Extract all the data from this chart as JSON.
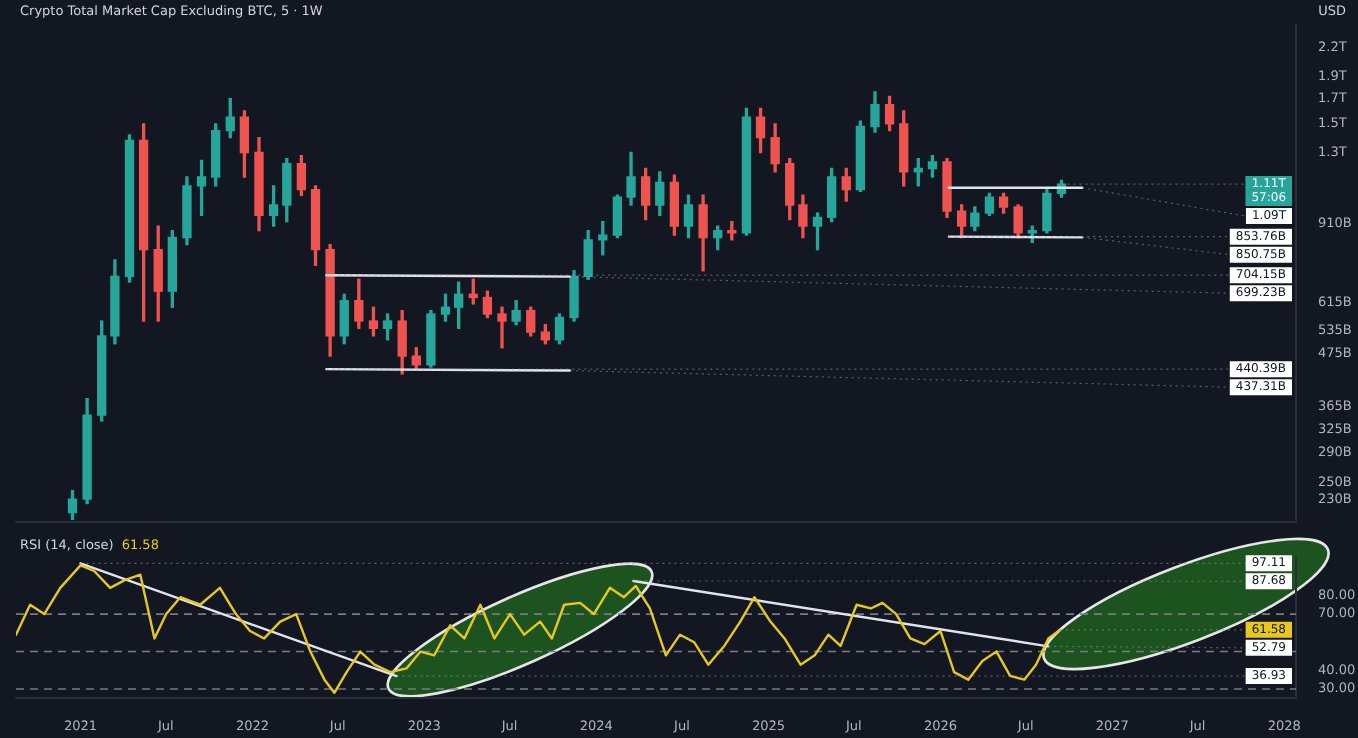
{
  "chart_data": [
    {
      "type": "candlestick",
      "title": "Crypto Total Market Cap Excluding BTC, 5 · 1W",
      "log": true,
      "tick_labels": "y",
      "xlim": [
        "2020-08-17",
        "2028-01-26"
      ],
      "ylim": [
        205000000000.0,
        2470000000000.0
      ],
      "yticks": [
        {
          "value": 2200000000000.0,
          "label": "2.2T"
        },
        {
          "value": 1900000000000.0,
          "label": "1.9T"
        },
        {
          "value": 1700000000000.0,
          "label": "1.7T"
        },
        {
          "value": 1500000000000.0,
          "label": "1.5T"
        },
        {
          "value": 1300000000000.0,
          "label": "1.3T"
        },
        {
          "value": 910000000000.0,
          "label": "910B"
        },
        {
          "value": 615000000000.0,
          "label": "615B"
        },
        {
          "value": 535000000000.0,
          "label": "535B"
        },
        {
          "value": 475000000000.0,
          "label": "475B"
        },
        {
          "value": 365000000000.0,
          "label": "365B"
        },
        {
          "value": 325000000000.0,
          "label": "325B"
        },
        {
          "value": 290000000000.0,
          "label": "290B"
        },
        {
          "value": 250000000000.0,
          "label": "250B"
        },
        {
          "value": 230000000000.0,
          "label": "230B"
        }
      ],
      "x": [
        "2020-12-15",
        "2021-01-15",
        "2021-02-15",
        "2021-03-15",
        "2021-04-15",
        "2021-05-15",
        "2021-06-15",
        "2021-07-15",
        "2021-08-15",
        "2021-09-15",
        "2021-10-15",
        "2021-11-15",
        "2021-12-15",
        "2022-01-15",
        "2022-02-15",
        "2022-03-15",
        "2022-04-15",
        "2022-05-15",
        "2022-06-15",
        "2022-07-15",
        "2022-08-15",
        "2022-09-15",
        "2022-10-15",
        "2022-11-15",
        "2022-12-15",
        "2023-01-15",
        "2023-02-15",
        "2023-03-15",
        "2023-04-15",
        "2023-05-15",
        "2023-06-15",
        "2023-07-15",
        "2023-08-15",
        "2023-09-15",
        "2023-10-15",
        "2023-11-15",
        "2023-12-15",
        "2024-01-15",
        "2024-02-15",
        "2024-03-15",
        "2024-04-15",
        "2024-05-15",
        "2024-06-15",
        "2024-07-15",
        "2024-08-15",
        "2024-09-15",
        "2024-10-15",
        "2024-11-15",
        "2024-12-15",
        "2025-01-15",
        "2025-02-15",
        "2025-03-15",
        "2025-04-15",
        "2025-05-15",
        "2025-06-15",
        "2025-07-15",
        "2025-08-15",
        "2025-09-15",
        "2025-10-15",
        "2025-11-15",
        "2025-12-15",
        "2026-01-15",
        "2026-02-15",
        "2026-03-15",
        "2026-04-15",
        "2026-05-15",
        "2026-06-15",
        "2026-07-15",
        "2026-08-15",
        "2026-09-15"
      ],
      "ohlc": [
        [
          215000000000.0,
          240000000000.0,
          208000000000.0,
          230000000000.0
        ],
        [
          230000000000.0,
          380000000000.0,
          225000000000.0,
          350000000000.0
        ],
        [
          350000000000.0,
          560000000000.0,
          340000000000.0,
          520000000000.0
        ],
        [
          520000000000.0,
          760000000000.0,
          500000000000.0,
          700000000000.0
        ],
        [
          700000000000.0,
          1420000000000.0,
          680000000000.0,
          1380000000000.0
        ],
        [
          1380000000000.0,
          1500000000000.0,
          560000000000.0,
          800000000000.0
        ],
        [
          800000000000.0,
          900000000000.0,
          560000000000.0,
          650000000000.0
        ],
        [
          650000000000.0,
          880000000000.0,
          600000000000.0,
          850000000000.0
        ],
        [
          850000000000.0,
          1150000000000.0,
          820000000000.0,
          1100000000000.0
        ],
        [
          1100000000000.0,
          1250000000000.0,
          950000000000.0,
          1150000000000.0
        ],
        [
          1150000000000.0,
          1500000000000.0,
          1100000000000.0,
          1450000000000.0
        ],
        [
          1450000000000.0,
          1700000000000.0,
          1400000000000.0,
          1550000000000.0
        ],
        [
          1550000000000.0,
          1600000000000.0,
          1150000000000.0,
          1300000000000.0
        ],
        [
          1300000000000.0,
          1400000000000.0,
          880000000000.0,
          950000000000.0
        ],
        [
          950000000000.0,
          1100000000000.0,
          900000000000.0,
          1000000000000.0
        ],
        [
          1000000000000.0,
          1260000000000.0,
          920000000000.0,
          1230000000000.0
        ],
        [
          1230000000000.0,
          1280000000000.0,
          1050000000000.0,
          1080000000000.0
        ],
        [
          1080000000000.0,
          1100000000000.0,
          740000000000.0,
          800000000000.0
        ],
        [
          800000000000.0,
          820000000000.0,
          470000000000.0,
          520000000000.0
        ],
        [
          520000000000.0,
          640000000000.0,
          500000000000.0,
          620000000000.0
        ],
        [
          620000000000.0,
          690000000000.0,
          540000000000.0,
          560000000000.0
        ],
        [
          560000000000.0,
          600000000000.0,
          520000000000.0,
          540000000000.0
        ],
        [
          540000000000.0,
          580000000000.0,
          510000000000.0,
          560000000000.0
        ],
        [
          560000000000.0,
          590000000000.0,
          430000000000.0,
          470000000000.0
        ],
        [
          470000000000.0,
          490000000000.0,
          440000000000.0,
          450000000000.0
        ],
        [
          450000000000.0,
          590000000000.0,
          445000000000.0,
          580000000000.0
        ],
        [
          580000000000.0,
          640000000000.0,
          560000000000.0,
          600000000000.0
        ],
        [
          600000000000.0,
          680000000000.0,
          540000000000.0,
          640000000000.0
        ],
        [
          640000000000.0,
          690000000000.0,
          610000000000.0,
          630000000000.0
        ],
        [
          630000000000.0,
          650000000000.0,
          570000000000.0,
          580000000000.0
        ],
        [
          580000000000.0,
          600000000000.0,
          490000000000.0,
          560000000000.0
        ],
        [
          560000000000.0,
          620000000000.0,
          550000000000.0,
          590000000000.0
        ],
        [
          590000000000.0,
          600000000000.0,
          520000000000.0,
          530000000000.0
        ],
        [
          530000000000.0,
          550000000000.0,
          500000000000.0,
          510000000000.0
        ],
        [
          510000000000.0,
          580000000000.0,
          500000000000.0,
          570000000000.0
        ],
        [
          570000000000.0,
          720000000000.0,
          560000000000.0,
          700000000000.0
        ],
        [
          700000000000.0,
          880000000000.0,
          690000000000.0,
          840000000000.0
        ],
        [
          840000000000.0,
          920000000000.0,
          780000000000.0,
          860000000000.0
        ],
        [
          860000000000.0,
          1050000000000.0,
          850000000000.0,
          1040000000000.0
        ],
        [
          1040000000000.0,
          1300000000000.0,
          1000000000000.0,
          1150000000000.0
        ],
        [
          1150000000000.0,
          1200000000000.0,
          930000000000.0,
          1000000000000.0
        ],
        [
          1000000000000.0,
          1180000000000.0,
          950000000000.0,
          1120000000000.0
        ],
        [
          1120000000000.0,
          1160000000000.0,
          860000000000.0,
          900000000000.0
        ],
        [
          900000000000.0,
          1050000000000.0,
          850000000000.0,
          1000000000000.0
        ],
        [
          1000000000000.0,
          1050000000000.0,
          720000000000.0,
          850000000000.0
        ],
        [
          850000000000.0,
          900000000000.0,
          800000000000.0,
          880000000000.0
        ],
        [
          880000000000.0,
          920000000000.0,
          840000000000.0,
          870000000000.0
        ],
        [
          870000000000.0,
          1620000000000.0,
          860000000000.0,
          1550000000000.0
        ],
        [
          1550000000000.0,
          1620000000000.0,
          1300000000000.0,
          1400000000000.0
        ],
        [
          1400000000000.0,
          1500000000000.0,
          1180000000000.0,
          1230000000000.0
        ],
        [
          1230000000000.0,
          1260000000000.0,
          930000000000.0,
          1000000000000.0
        ],
        [
          1000000000000.0,
          1050000000000.0,
          850000000000.0,
          900000000000.0
        ],
        [
          900000000000.0,
          960000000000.0,
          800000000000.0,
          940000000000.0
        ],
        [
          940000000000.0,
          1200000000000.0,
          920000000000.0,
          1150000000000.0
        ],
        [
          1150000000000.0,
          1200000000000.0,
          1020000000000.0,
          1080000000000.0
        ],
        [
          1080000000000.0,
          1520000000000.0,
          1070000000000.0,
          1480000000000.0
        ],
        [
          1480000000000.0,
          1760000000000.0,
          1440000000000.0,
          1650000000000.0
        ],
        [
          1650000000000.0,
          1720000000000.0,
          1450000000000.0,
          1500000000000.0
        ],
        [
          1500000000000.0,
          1600000000000.0,
          1100000000000.0,
          1180000000000.0
        ],
        [
          1180000000000.0,
          1260000000000.0,
          1100000000000.0,
          1200000000000.0
        ],
        [
          1200000000000.0,
          1280000000000.0,
          1150000000000.0,
          1240000000000.0
        ],
        [
          1240000000000.0,
          1260000000000.0,
          940000000000.0,
          970000000000.0
        ],
        [
          970000000000.0,
          1000000000000.0,
          850000000000.0,
          900000000000.0
        ],
        [
          900000000000.0,
          990000000000.0,
          880000000000.0,
          960000000000.0
        ],
        [
          960000000000.0,
          1060000000000.0,
          950000000000.0,
          1040000000000.0
        ],
        [
          1040000000000.0,
          1060000000000.0,
          960000000000.0,
          990000000000.0
        ],
        [
          990000000000.0,
          1000000000000.0,
          850000000000.0,
          870000000000.0
        ],
        [
          870000000000.0,
          900000000000.0,
          830000000000.0,
          880000000000.0
        ],
        [
          880000000000.0,
          1090000000000.0,
          870000000000.0,
          1060000000000.0
        ],
        [
          1060000000000.0,
          1130000000000.0,
          1040000000000.0,
          1110000000000.0
        ]
      ],
      "series": [
        {
          "type": "line",
          "color": "#e0e3eb",
          "x": [
            "2022-06-07",
            "2023-11-06"
          ],
          "values": [
            704150000000.0,
            699230000000.0
          ]
        },
        {
          "type": "line",
          "color": "#e0e3eb",
          "x": [
            "2022-06-07",
            "2023-11-06"
          ],
          "values": [
            440390000000.0,
            437310000000.0
          ]
        },
        {
          "type": "line",
          "color": "#e0e3eb",
          "x": [
            "2026-01-19",
            "2026-10-29"
          ],
          "values": [
            1090000000000.0,
            1090000000000.0
          ]
        },
        {
          "type": "line",
          "color": "#e0e3eb",
          "x": [
            "2026-01-19",
            "2026-10-29"
          ],
          "values": [
            853760000000.0,
            850750000000.0
          ]
        }
      ],
      "annotations": [
        "USD",
        "57:06",
        {
          "text": "1.11T",
          "x": "2026-09-15",
          "y": 1110000000000.0
        },
        {
          "text": "1.09T",
          "x": "2026-10-29",
          "y": 1090000000000.0
        },
        {
          "text": "853.76B",
          "x": "2026-01-19",
          "y": 853760000000.0
        },
        {
          "text": "850.75B",
          "x": "2026-10-29",
          "y": 850750000000.0
        },
        {
          "text": "704.15B",
          "x": "2022-06-07",
          "y": 704150000000.0
        },
        {
          "text": "699.23B",
          "x": "2023-11-06",
          "y": 699230000000.0
        },
        {
          "text": "440.39B",
          "x": "2022-06-07",
          "y": 440390000000.0
        },
        {
          "text": "437.31B",
          "x": "2023-11-06",
          "y": 437310000000.0
        }
      ]
    },
    {
      "type": "line",
      "title": "RSI (14, close)",
      "xlim": [
        "2020-08-17",
        "2028-01-26"
      ],
      "xticks": [
        "2021",
        {
          "value": "2021-07",
          "label": "Jul"
        },
        "2022",
        {
          "value": "2022-07",
          "label": "Jul"
        },
        "2023",
        {
          "value": "2023-07",
          "label": "Jul"
        },
        "2024",
        {
          "value": "2024-07",
          "label": "Jul"
        },
        "2025",
        {
          "value": "2025-07",
          "label": "Jul"
        },
        "2026",
        {
          "value": "2026-07",
          "label": "Jul"
        },
        "2027",
        {
          "value": "2027-07",
          "label": "Jul"
        },
        "2028"
      ],
      "ylim": [
        25,
        101
      ],
      "yticks": [
        {
          "value": 80,
          "label": "80.00"
        },
        {
          "value": 70,
          "label": "70.00"
        },
        {
          "value": 40,
          "label": "40.00"
        },
        {
          "value": 30,
          "label": "30.00"
        }
      ],
      "series": [
        {
          "color": "#e8c81e",
          "x": [
            "2020-08-17",
            "2020-09-16",
            "2020-10-16",
            "2020-11-19",
            "2021-01-01",
            "2021-01-30",
            "2021-03-05",
            "2021-04-04",
            "2021-05-08",
            "2021-06-07",
            "2021-07-02",
            "2021-08-01",
            "2021-09-12",
            "2021-10-24",
            "2021-11-27",
            "2021-12-27",
            "2022-01-26",
            "2022-03-01",
            "2022-04-04",
            "2022-05-04",
            "2022-06-03",
            "2022-06-24",
            "2022-07-20",
            "2022-08-18",
            "2022-09-17",
            "2022-10-21",
            "2022-11-24",
            "2022-12-24",
            "2023-01-22",
            "2023-02-25",
            "2023-03-27",
            "2023-04-30",
            "2023-05-30",
            "2023-07-02",
            "2023-08-01",
            "2023-09-04",
            "2023-09-29",
            "2023-10-25",
            "2023-11-28",
            "2023-12-27",
            "2024-01-30",
            "2024-02-29",
            "2024-03-25",
            "2024-04-24",
            "2024-05-28",
            "2024-06-27",
            "2024-07-27",
            "2024-08-26",
            "2024-09-29",
            "2024-11-02",
            "2024-12-02",
            "2025-01-05",
            "2025-02-04",
            "2025-03-10",
            "2025-04-09",
            "2025-05-08",
            "2025-06-03",
            "2025-07-07",
            "2025-08-06",
            "2025-08-31",
            "2025-09-29",
            "2025-10-29",
            "2025-11-28",
            "2026-01-01",
            "2026-01-30",
            "2026-03-01",
            "2026-03-31",
            "2026-04-30",
            "2026-05-29",
            "2026-06-28",
            "2026-07-23",
            "2026-08-18",
            "2026-09-12"
          ],
          "values": [
            59,
            75,
            70,
            84,
            96,
            93,
            84,
            88,
            91,
            57,
            70,
            79,
            75,
            84,
            70,
            61,
            57,
            66,
            70,
            50,
            35,
            28,
            39,
            50,
            43,
            39,
            41,
            50,
            48,
            64,
            57,
            75,
            57,
            70,
            59,
            66,
            57,
            75,
            76,
            70,
            84,
            79,
            85,
            73,
            48,
            59,
            55,
            43,
            53,
            66,
            79,
            66,
            57,
            43,
            48,
            59,
            53,
            75,
            73,
            76,
            70,
            57,
            54,
            61,
            39,
            35,
            45,
            50,
            37,
            35,
            43,
            57,
            61.58
          ]
        },
        {
          "color": "#e0e3eb",
          "x": [
            "2021-01-01",
            "2022-11-03"
          ],
          "values": [
            97.11,
            36.93
          ]
        },
        {
          "color": "#e0e3eb",
          "x": [
            "2024-03-20",
            "2026-08-18"
          ],
          "values": [
            87.68,
            52.79
          ]
        }
      ],
      "ref_lines": [
        {
          "axis": "y",
          "value": 70,
          "color": "#787b86",
          "line_style": "dashed"
        },
        {
          "axis": "y",
          "value": 50,
          "color": "#787b86",
          "line_style": "dashed"
        },
        {
          "axis": "y",
          "value": 30,
          "color": "#787b86",
          "line_style": "dashed"
        }
      ],
      "annotations": [
        "61.58",
        {
          "text": "97.11",
          "x": "2021-01-01",
          "y": 97.11
        },
        {
          "text": "87.68",
          "x": "2024-03-20",
          "y": 87.68
        },
        {
          "text": "61.58",
          "x": "2026-09-12",
          "y": 61.58
        },
        {
          "text": "52.79",
          "x": "2026-08-18",
          "y": 52.79
        },
        {
          "text": "36.93",
          "x": "2022-11-03",
          "y": 36.93
        }
      ]
    }
  ]
}
